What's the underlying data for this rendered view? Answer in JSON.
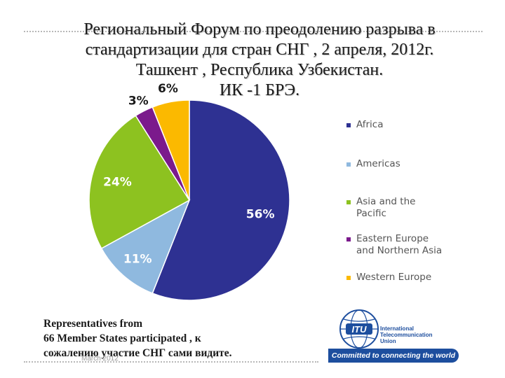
{
  "title_lines": [
    "Региональный Форум по преодолению разрыва в",
    "стандартизации для стран СНГ , 2 апреля, 2012г.",
    "Ташкент , Республика Узбекистан.",
    "ИК -1 БРЭ."
  ],
  "chart_data": {
    "type": "pie",
    "title": "",
    "categories": [
      "Africa",
      "Americas",
      "Asia and the Pacific",
      "Eastern Europe and Northern Asia",
      "Western Europe"
    ],
    "values": [
      56,
      11,
      24,
      3,
      6
    ],
    "labels": [
      "56%",
      "11%",
      "24%",
      "3%",
      "6%"
    ],
    "colors": [
      "#2e3192",
      "#8fb9df",
      "#8dc220",
      "#7b1a8c",
      "#fbb900"
    ],
    "label_colors": [
      "#ffffff",
      "#ffffff",
      "#ffffff",
      "#1a1a1a",
      "#1a1a1a"
    ],
    "start": "12 o'clock",
    "direction": "clockwise",
    "legend": {
      "position": "right",
      "entries": [
        [
          "Africa"
        ],
        [
          "Americas"
        ],
        [
          "Asia and the",
          "Pacific"
        ],
        [
          "Eastern Europe",
          "and Northern Asia"
        ],
        [
          "Western Europe"
        ]
      ]
    }
  },
  "footer": {
    "lines": [
      "Representatives from",
      "66 Member States participated ,  к",
      "сожалению  участие СНГ сами видите."
    ],
    "date": "March 2012"
  },
  "logo": {
    "name_lines": [
      "International",
      "Telecommunication",
      "Union"
    ],
    "tagline": "Committed to connecting the world"
  }
}
